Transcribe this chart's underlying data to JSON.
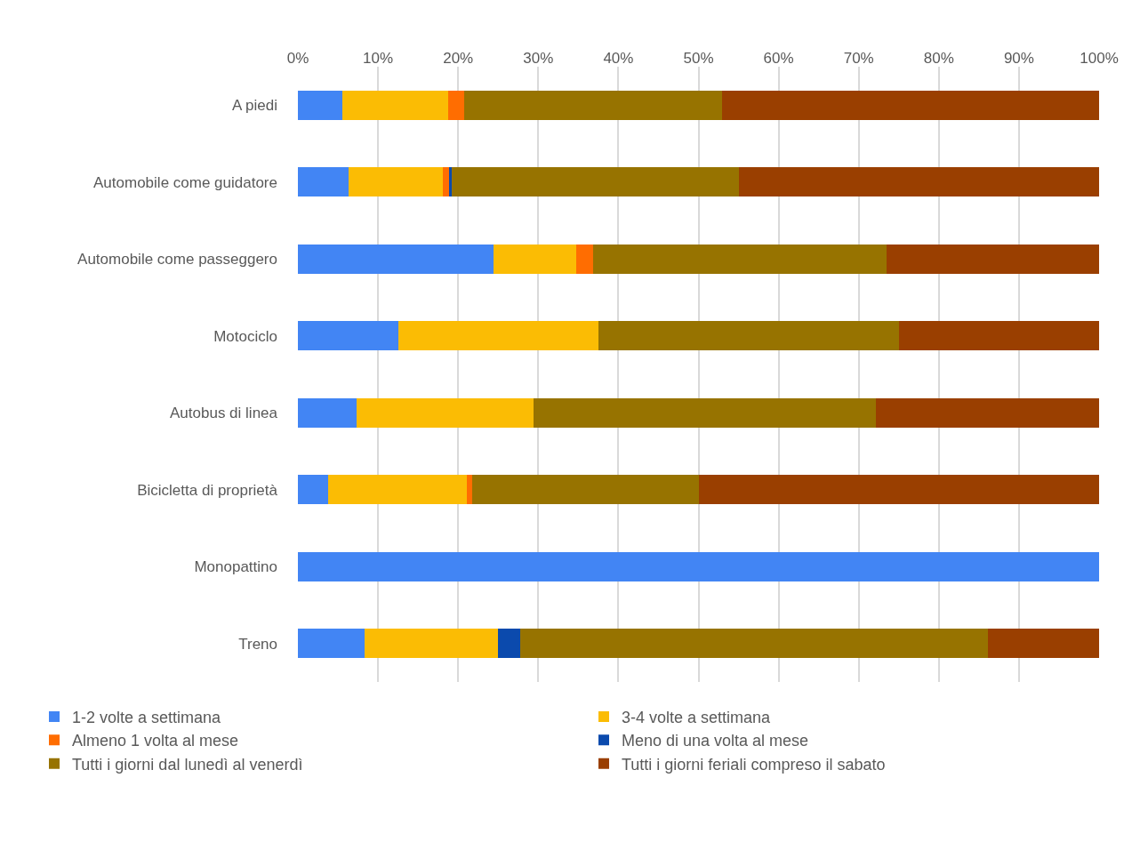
{
  "chart_data": {
    "type": "bar",
    "orientation": "horizontal",
    "stacked": true,
    "categories": [
      "A piedi",
      "Automobile come guidatore",
      "Automobile come passeggero",
      "Motociclo",
      "Autobus di linea",
      "Bicicletta di proprietà",
      "Monopattino",
      "Treno"
    ],
    "series": [
      {
        "name": "1-2 volte a settimana",
        "color": "#4285f4",
        "values": [
          5.6,
          6.3,
          24.4,
          12.5,
          7.3,
          3.8,
          100,
          8.3
        ]
      },
      {
        "name": "3-4 volte a settimana",
        "color": "#fbbc04",
        "values": [
          13.2,
          11.8,
          10.3,
          25.0,
          22.1,
          17.3,
          0,
          16.7
        ]
      },
      {
        "name": "Almeno 1 volta al mese",
        "color": "#ff6d01",
        "values": [
          2.0,
          0.8,
          2.1,
          0,
          0,
          0.7,
          0,
          0
        ]
      },
      {
        "name": "Meno di una volta al mese",
        "color": "#0b4aad",
        "values": [
          0,
          0.3,
          0,
          0,
          0,
          0,
          0,
          2.8
        ]
      },
      {
        "name": "Tutti i giorni dal lunedì al venerdì",
        "color": "#977300",
        "values": [
          32.1,
          35.8,
          36.7,
          37.5,
          42.7,
          28.2,
          0,
          58.3
        ]
      },
      {
        "name": "Tutti i giorni feriali compreso il sabato",
        "color": "#9a3f00",
        "values": [
          47.1,
          45.0,
          26.5,
          25.0,
          27.9,
          50.0,
          0,
          13.9
        ]
      }
    ],
    "xlim": [
      0,
      100
    ],
    "xticks": [
      {
        "value": 0,
        "label": "0%"
      },
      {
        "value": 10,
        "label": "10%"
      },
      {
        "value": 20,
        "label": "20%"
      },
      {
        "value": 30,
        "label": "30%"
      },
      {
        "value": 40,
        "label": "40%"
      },
      {
        "value": 50,
        "label": "50%"
      },
      {
        "value": 60,
        "label": "60%"
      },
      {
        "value": 70,
        "label": "70%"
      },
      {
        "value": 80,
        "label": "80%"
      },
      {
        "value": 90,
        "label": "90%"
      },
      {
        "value": 100,
        "label": "100%"
      }
    ],
    "grid": "x",
    "legend": "bottom"
  }
}
